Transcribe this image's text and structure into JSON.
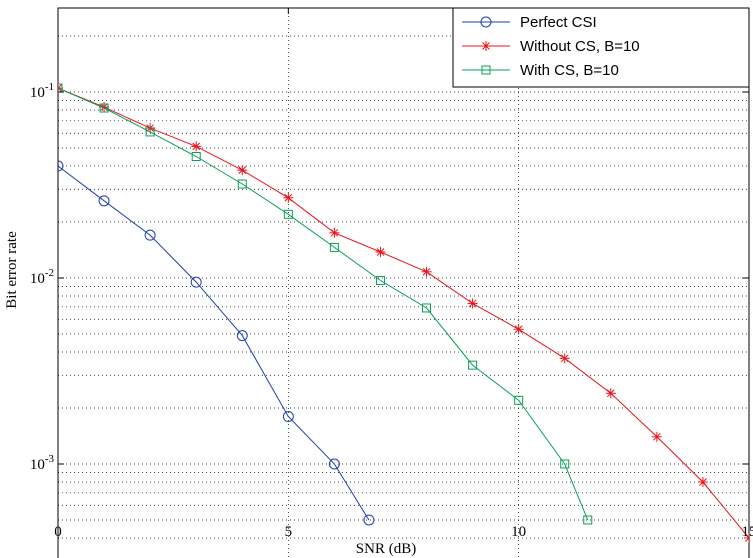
{
  "chart_data": {
    "type": "line",
    "title": "",
    "xlabel": "SNR (dB)",
    "ylabel": "Bit error rate",
    "xlim": [
      0,
      15
    ],
    "ylim": [
      0.0005,
      0.3
    ],
    "yscale": "log",
    "grid": true,
    "legend_position": "top-right",
    "x_ticks": [
      0,
      5,
      10,
      15
    ],
    "x_tick_labels": [
      "0",
      "5",
      "10",
      "15"
    ],
    "y_ticks": [
      0.001,
      0.01,
      0.1
    ],
    "y_tick_labels": [
      {
        "base": "10",
        "exp": "-3"
      },
      {
        "base": "10",
        "exp": "-2"
      },
      {
        "base": "10",
        "exp": "-1"
      }
    ],
    "series": [
      {
        "name": "Perfect CSI",
        "color": "#1f3fae",
        "marker": "circle",
        "x": [
          0,
          1,
          2,
          3,
          4,
          5,
          6,
          6.75
        ],
        "y": [
          0.04,
          0.026,
          0.017,
          0.0095,
          0.0049,
          0.0018,
          0.001,
          0.0005
        ]
      },
      {
        "name": "Without CS, B=10",
        "color": "#e8141b",
        "marker": "asterisk",
        "x": [
          0,
          1,
          2,
          3,
          4,
          5,
          6,
          7,
          8,
          9,
          10,
          11,
          12,
          13,
          14,
          15
        ],
        "y": [
          0.105,
          0.083,
          0.064,
          0.051,
          0.038,
          0.027,
          0.0175,
          0.0138,
          0.0108,
          0.0073,
          0.0053,
          0.0037,
          0.0024,
          0.0014,
          0.0008,
          0.0004
        ]
      },
      {
        "name": "With CS, B=10",
        "color": "#0aa05a",
        "marker": "square",
        "x": [
          0,
          1,
          2,
          3,
          4,
          5,
          6,
          7,
          8,
          9,
          10,
          11,
          11.5
        ],
        "y": [
          0.105,
          0.082,
          0.061,
          0.045,
          0.032,
          0.022,
          0.0146,
          0.0097,
          0.0069,
          0.0034,
          0.0022,
          0.001,
          0.0005
        ]
      }
    ]
  }
}
